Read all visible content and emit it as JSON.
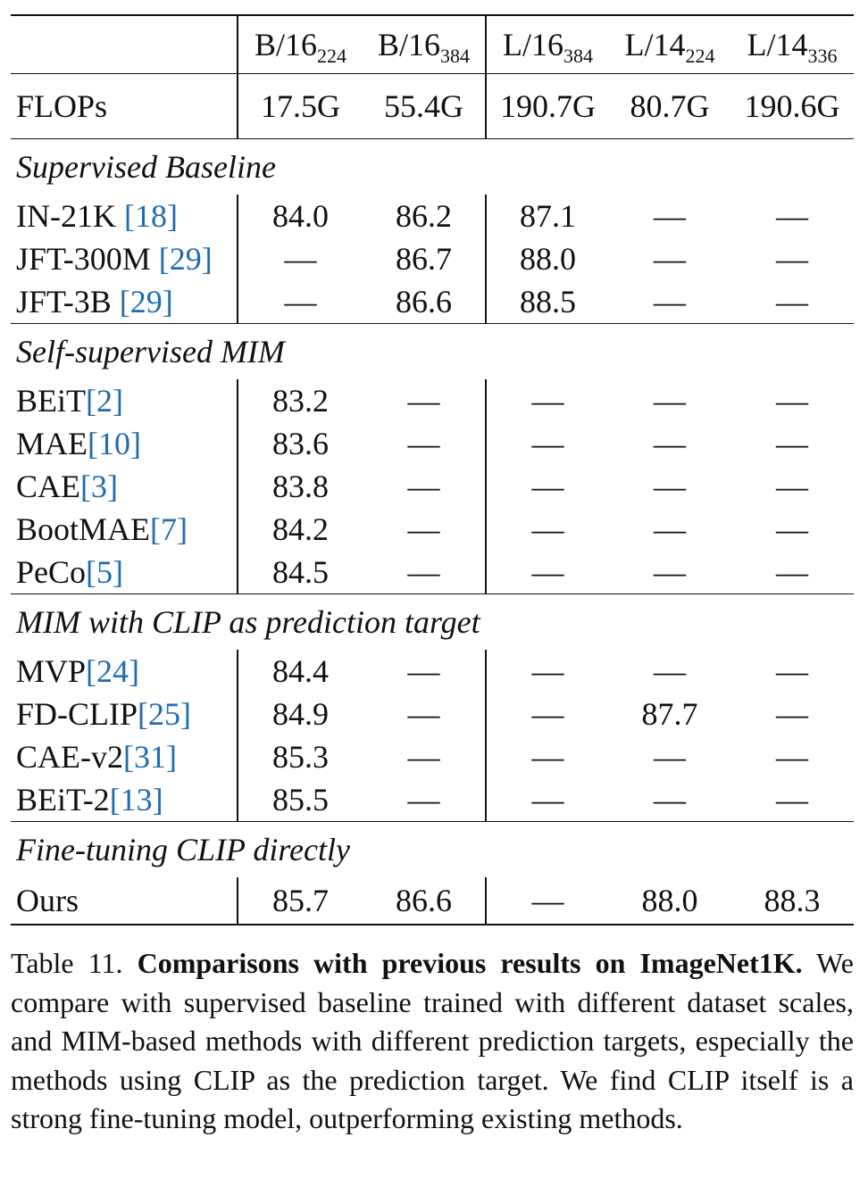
{
  "columns": [
    {
      "base": "B/16",
      "sub": "224"
    },
    {
      "base": "B/16",
      "sub": "384"
    },
    {
      "base": "L/16",
      "sub": "384"
    },
    {
      "base": "L/14",
      "sub": "224"
    },
    {
      "base": "L/14",
      "sub": "336"
    }
  ],
  "flops": {
    "label": "FLOPs",
    "values": [
      "17.5G",
      "55.4G",
      "190.7G",
      "80.7G",
      "190.6G"
    ]
  },
  "sections": [
    {
      "title": "Supervised Baseline",
      "rows": [
        {
          "name": "IN-21K ",
          "cite": "[18]",
          "values": [
            "84.0",
            "86.2",
            "87.1",
            "—",
            "—"
          ]
        },
        {
          "name": "JFT-300M ",
          "cite": "[29]",
          "values": [
            "—",
            "86.7",
            "88.0",
            "—",
            "—"
          ]
        },
        {
          "name": "JFT-3B ",
          "cite": "[29]",
          "values": [
            "—",
            "86.6",
            "88.5",
            "—",
            "—"
          ]
        }
      ]
    },
    {
      "title": "Self-supervised MIM",
      "rows": [
        {
          "name": "BEiT",
          "cite": "[2]",
          "values": [
            "83.2",
            "—",
            "—",
            "—",
            "—"
          ]
        },
        {
          "name": "MAE",
          "cite": "[10]",
          "values": [
            "83.6",
            "—",
            "—",
            "—",
            "—"
          ]
        },
        {
          "name": "CAE",
          "cite": "[3]",
          "values": [
            "83.8",
            "—",
            "—",
            "—",
            "—"
          ]
        },
        {
          "name": "BootMAE",
          "cite": "[7]",
          "values": [
            "84.2",
            "—",
            "—",
            "—",
            "—"
          ]
        },
        {
          "name": "PeCo",
          "cite": "[5]",
          "values": [
            "84.5",
            "—",
            "—",
            "—",
            "—"
          ]
        }
      ]
    },
    {
      "title": "MIM with CLIP as prediction target",
      "rows": [
        {
          "name": "MVP",
          "cite": "[24]",
          "values": [
            "84.4",
            "—",
            "—",
            "—",
            "—"
          ]
        },
        {
          "name": "FD-CLIP",
          "cite": "[25]",
          "values": [
            "84.9",
            "—",
            "—",
            "87.7",
            "—"
          ]
        },
        {
          "name": "CAE-v2",
          "cite": "[31]",
          "values": [
            "85.3",
            "—",
            "—",
            "—",
            "—"
          ]
        },
        {
          "name": "BEiT-2",
          "cite": "[13]",
          "values": [
            "85.5",
            "—",
            "—",
            "—",
            "—"
          ]
        }
      ]
    },
    {
      "title": "Fine-tuning CLIP directly",
      "rows": [
        {
          "name": "Ours",
          "cite": "",
          "values": [
            "85.7",
            "86.6",
            "—",
            "88.0",
            "88.3"
          ]
        }
      ]
    }
  ],
  "caption": {
    "label": "Table 11. ",
    "bold": "Comparisons with previous results on ImageNet1K.",
    "text": " We compare with supervised baseline trained with different dataset scales, and MIM-based methods with different prediction targets, especially the methods using CLIP as the prediction target. We find CLIP itself is a strong fine-tuning model, outperforming existing methods."
  }
}
